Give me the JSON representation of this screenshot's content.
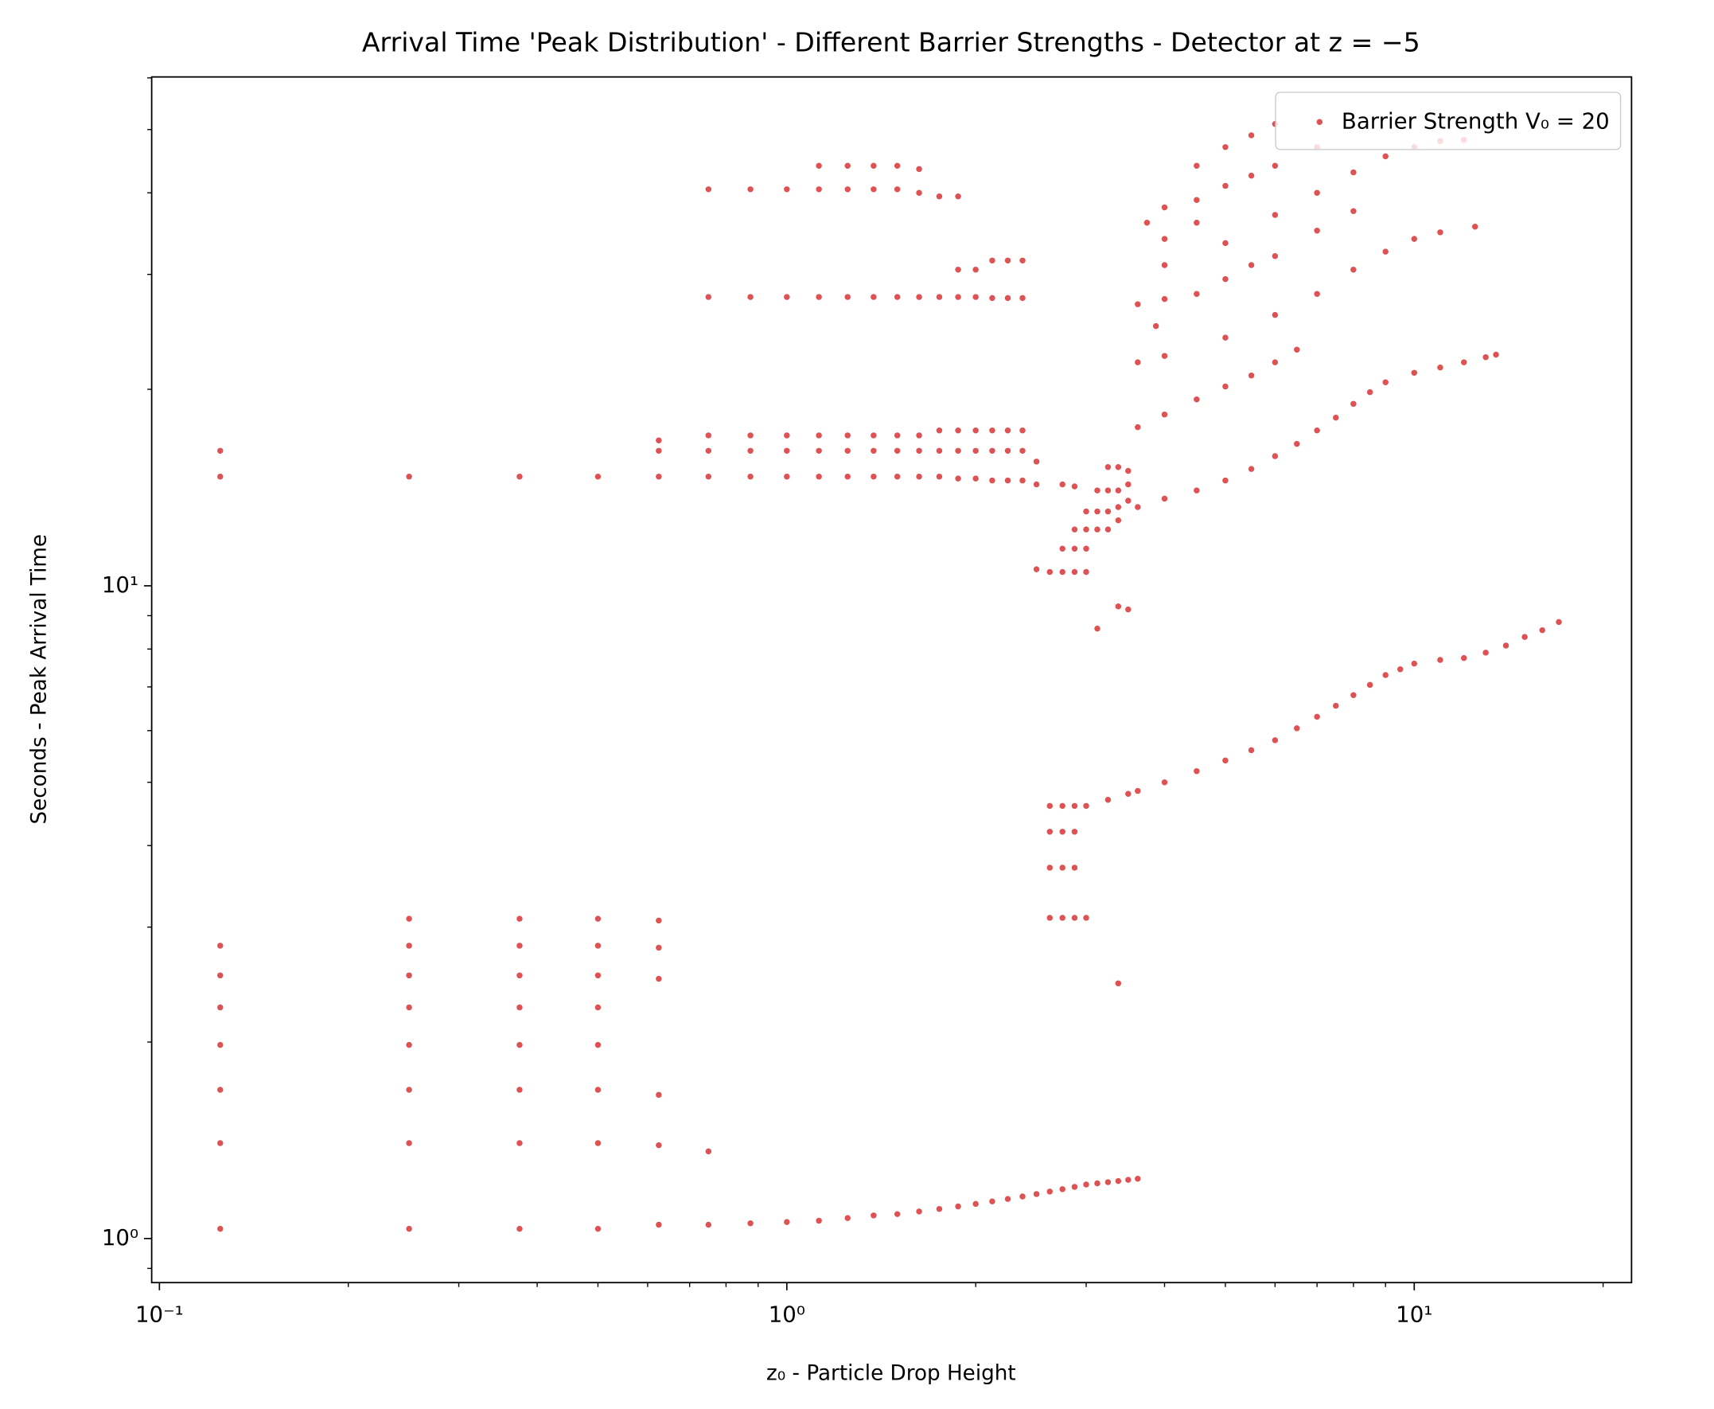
{
  "chart_data": {
    "type": "scatter",
    "title": "Arrival Time 'Peak Distribution' - Different Barrier Strengths - Detector at z = −5",
    "x_label": "z₀ - Particle Drop Height",
    "y_label": "Seconds - Peak Arrival Time",
    "xscale": "log",
    "yscale": "log",
    "xlim": [
      0.0972,
      22.2
    ],
    "ylim": [
      0.856,
      60.2
    ],
    "xticks": [
      {
        "value": 0.1,
        "label": "10⁻¹"
      },
      {
        "value": 1,
        "label": "10⁰"
      },
      {
        "value": 10,
        "label": "10¹"
      }
    ],
    "yticks": [
      {
        "value": 1,
        "label": "10⁰"
      },
      {
        "value": 10,
        "label": "10¹"
      }
    ],
    "xminor_ticks": [
      0.2,
      0.3,
      0.4,
      0.5,
      0.6,
      0.7,
      0.8,
      0.9,
      2,
      3,
      4,
      5,
      6,
      7,
      8,
      9,
      20
    ],
    "yminor_ticks": [
      0.9,
      2,
      3,
      4,
      5,
      6,
      7,
      8,
      9,
      20,
      30,
      40,
      50,
      60
    ],
    "legend": "upper right",
    "series": [
      {
        "name": "Barrier Strength V₀ = 20",
        "color": "#d62728",
        "x": [
          0.125,
          0.125,
          0.125,
          0.125,
          0.125,
          0.125,
          0.125,
          0.125,
          0.125,
          0.25,
          0.25,
          0.25,
          0.25,
          0.25,
          0.25,
          0.25,
          0.25,
          0.25,
          0.375,
          0.375,
          0.375,
          0.375,
          0.375,
          0.375,
          0.375,
          0.375,
          0.375,
          0.5,
          0.5,
          0.5,
          0.5,
          0.5,
          0.5,
          0.5,
          0.5,
          0.5,
          0.625,
          0.625,
          0.625,
          0.625,
          0.625,
          0.625,
          0.625,
          0.625,
          0.625,
          0.75,
          0.75,
          0.75,
          0.75,
          0.75,
          0.75,
          0.75,
          0.875,
          0.875,
          0.875,
          0.875,
          0.875,
          0.875,
          1.0,
          1.0,
          1.0,
          1.0,
          1.0,
          1.0,
          1.125,
          1.125,
          1.125,
          1.125,
          1.125,
          1.125,
          1.125,
          1.25,
          1.25,
          1.25,
          1.25,
          1.25,
          1.25,
          1.25,
          1.375,
          1.375,
          1.375,
          1.375,
          1.375,
          1.375,
          1.375,
          1.5,
          1.5,
          1.5,
          1.5,
          1.5,
          1.5,
          1.5,
          1.625,
          1.625,
          1.625,
          1.625,
          1.625,
          1.625,
          1.625,
          1.75,
          1.75,
          1.75,
          1.75,
          1.75,
          1.75,
          1.875,
          1.875,
          1.875,
          1.875,
          1.875,
          1.875,
          1.875,
          2.0,
          2.0,
          2.0,
          2.0,
          2.0,
          2.0,
          2.125,
          2.125,
          2.125,
          2.125,
          2.125,
          2.125,
          2.25,
          2.25,
          2.25,
          2.25,
          2.25,
          2.25,
          2.375,
          2.375,
          2.375,
          2.375,
          2.375,
          2.375,
          2.5,
          2.5,
          2.5,
          2.5,
          2.625,
          2.625,
          2.625,
          2.625,
          2.625,
          2.625,
          2.75,
          2.75,
          2.75,
          2.75,
          2.75,
          2.75,
          2.75,
          2.75,
          2.875,
          2.875,
          2.875,
          2.875,
          2.875,
          2.875,
          2.875,
          2.875,
          2.875,
          3.0,
          3.0,
          3.0,
          3.0,
          3.0,
          3.0,
          3.0,
          3.125,
          3.125,
          3.125,
          3.125,
          3.125,
          3.25,
          3.25,
          3.25,
          3.25,
          3.25,
          3.25,
          3.375,
          3.375,
          3.375,
          3.375,
          3.375,
          3.375,
          3.375,
          3.5,
          3.5,
          3.5,
          3.5,
          3.5,
          3.5,
          3.625,
          3.625,
          3.625,
          3.625,
          3.625,
          3.625,
          4,
          4.5,
          5,
          5.5,
          6,
          6.5,
          7,
          7.5,
          8,
          8.5,
          9,
          9.5,
          10,
          11,
          12,
          13,
          14,
          15,
          16,
          17,
          4,
          4.5,
          5,
          5.5,
          6,
          6.5,
          7,
          7.5,
          8,
          8.5,
          9,
          10,
          11,
          12,
          13,
          13.5,
          4,
          5,
          6,
          7,
          8,
          9,
          10,
          11,
          12.5,
          4,
          5,
          6,
          7,
          8,
          9,
          10,
          11,
          12,
          4,
          4.5,
          5,
          5.5,
          6,
          6.5,
          4,
          4.5,
          5,
          5.5,
          6,
          7,
          8,
          4,
          4.5,
          5,
          5.5,
          6,
          7,
          4.5,
          5,
          5.5,
          6,
          4,
          4.5,
          3.875,
          3.75
        ],
        "values": [
          1.035,
          1.4,
          1.69,
          1.98,
          2.26,
          2.53,
          2.81,
          14.7,
          16.1,
          1.035,
          1.4,
          1.69,
          1.98,
          2.26,
          2.53,
          2.81,
          3.09,
          14.7,
          1.035,
          1.4,
          1.69,
          1.98,
          2.26,
          2.53,
          2.81,
          3.09,
          14.7,
          1.035,
          1.4,
          1.69,
          1.98,
          2.26,
          2.53,
          2.81,
          3.09,
          14.7,
          1.05,
          1.39,
          1.66,
          2.5,
          2.79,
          3.07,
          14.7,
          16.1,
          16.7,
          1.05,
          1.36,
          14.7,
          16.1,
          17.0,
          27.7,
          40.5,
          1.055,
          14.7,
          16.1,
          17.0,
          27.7,
          40.5,
          1.06,
          14.7,
          16.1,
          17.0,
          27.7,
          40.5,
          1.065,
          14.7,
          16.1,
          17.0,
          27.7,
          40.5,
          44.0,
          1.075,
          14.7,
          16.1,
          17.0,
          27.7,
          40.5,
          44.0,
          1.085,
          14.7,
          16.1,
          17.0,
          27.7,
          40.5,
          44.0,
          1.09,
          14.7,
          16.1,
          17.0,
          27.7,
          40.5,
          44.0,
          1.1,
          14.7,
          16.1,
          17.0,
          27.7,
          40.0,
          43.5,
          1.11,
          14.7,
          16.1,
          17.3,
          27.7,
          39.5,
          1.12,
          14.6,
          16.1,
          17.3,
          27.7,
          30.5,
          39.5,
          1.13,
          14.6,
          16.1,
          17.3,
          27.7,
          30.5,
          1.14,
          14.5,
          16.1,
          17.3,
          27.6,
          31.5,
          1.15,
          14.5,
          16.1,
          17.3,
          27.6,
          31.5,
          1.16,
          14.5,
          16.1,
          17.3,
          27.6,
          31.5,
          1.17,
          10.6,
          14.3,
          15.5,
          1.18,
          10.5,
          3.1,
          3.7,
          4.2,
          4.6,
          1.19,
          10.5,
          11.4,
          14.3,
          3.1,
          3.7,
          4.2,
          4.6,
          1.2,
          10.5,
          11.4,
          12.2,
          14.2,
          3.1,
          3.7,
          4.2,
          4.6,
          1.21,
          10.5,
          11.4,
          12.2,
          13.0,
          3.1,
          4.6,
          1.215,
          8.6,
          12.2,
          13.0,
          14.0,
          1.22,
          12.2,
          13.0,
          14.0,
          15.2,
          4.7,
          1.225,
          9.3,
          2.46,
          12.6,
          13.2,
          14.0,
          15.2,
          1.23,
          9.2,
          4.8,
          13.5,
          14.3,
          15.0,
          1.235,
          4.85,
          13.2,
          17.5,
          22.0,
          27.0,
          5.0,
          5.2,
          5.4,
          5.6,
          5.8,
          6.05,
          6.3,
          6.55,
          6.8,
          7.05,
          7.3,
          7.45,
          7.6,
          7.7,
          7.75,
          7.9,
          8.1,
          8.35,
          8.55,
          8.8,
          13.6,
          14.0,
          14.5,
          15.1,
          15.8,
          16.5,
          17.3,
          18.1,
          19.0,
          19.8,
          20.5,
          21.2,
          21.6,
          22.0,
          22.4,
          22.6,
          22.5,
          24,
          26,
          28,
          30.5,
          32.5,
          34,
          34.8,
          35.5,
          31,
          33.5,
          37,
          40,
          43,
          45.5,
          47,
          48,
          48.2,
          18.3,
          19.3,
          20.2,
          21.0,
          22.0,
          23.0,
          27.5,
          28.0,
          29.5,
          31,
          32,
          35,
          37.5,
          38,
          39,
          41,
          42.5,
          44,
          47,
          44,
          47,
          49,
          51,
          34,
          36,
          25,
          36
        ]
      }
    ]
  }
}
